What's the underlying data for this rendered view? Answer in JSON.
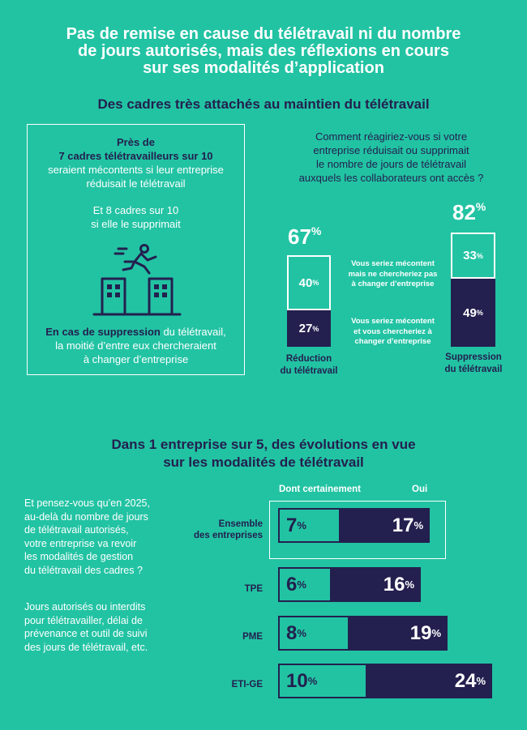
{
  "title": "Pas de remise en cause du télétravail ni du nombre\nde jours autorisés, mais des réflexions en cours\nsur ses modalités d’application",
  "section1_title": "Des cadres très attachés au maintien du télétravail",
  "leftbox": {
    "line1": "Près de",
    "line2": "7 cadres télétravailleurs sur 10",
    "line3": "seraient mécontents si leur entreprise\nréduisait le télétravail",
    "line4": "Et 8 cadres sur 10\nsi elle le supprimait",
    "bottom_bold": "En cas de suppression",
    "bottom_rest1": " du télétravail,",
    "bottom_rest2": "la moitié d’entre eux chercheraient\nà changer d’entreprise"
  },
  "question": "Comment réagiriez-vous si votre\nentreprise réduisait ou supprimait\nle nombre de jours de télétravail\nauxquels les collaborateurs ont accès ?",
  "middle_labels": {
    "top": "Vous seriez mécontent\nmais ne chercheriez pas\nà changer d’entreprise",
    "bottom": "Vous seriez mécontent\net vous chercheriez à\nchanger d’entreprise"
  },
  "section2_title": "Dans 1 entreprise sur 5, des évolutions en vue\nsur les modalités de télétravail",
  "left_question": "Et pensez-vous qu’en 2025,\nau-delà du nombre de jours\nde télétravail autorisés,\nvotre entreprise va revoir\nles modalités de gestion\ndu télétravail des cadres ?",
  "left_note": "Jours autorisés ou interdits\npour télétravailler, délai de\nprévenance et outil de suivi\ndes jours de télétravail, etc.",
  "colors": {
    "background": "#22c3a3",
    "navy": "#23204f",
    "white": "#ffffff"
  },
  "icon": "person-jumping-between-buildings-icon",
  "chart_data": [
    {
      "type": "bar",
      "stacked": true,
      "unit": "%",
      "categories": [
        "Réduction\ndu télétravail",
        "Suppression\ndu télétravail"
      ],
      "totals": [
        67,
        82
      ],
      "series": [
        {
          "name": "Vous seriez mécontent\nmais ne chercheriez pas\nà changer d’entreprise",
          "values": [
            40,
            33
          ]
        },
        {
          "name": "Vous seriez mécontent\net vous chercheriez à\nchanger d’entreprise",
          "values": [
            27,
            49
          ]
        }
      ]
    },
    {
      "type": "bar",
      "orientation": "horizontal",
      "unit": "%",
      "categories": [
        "Ensemble\ndes entreprises",
        "TPE",
        "PME",
        "ETI-GE"
      ],
      "series": [
        {
          "name": "Dont certainement",
          "values": [
            7,
            6,
            8,
            10
          ]
        },
        {
          "name": "Oui",
          "values": [
            17,
            16,
            19,
            24
          ]
        }
      ]
    }
  ]
}
